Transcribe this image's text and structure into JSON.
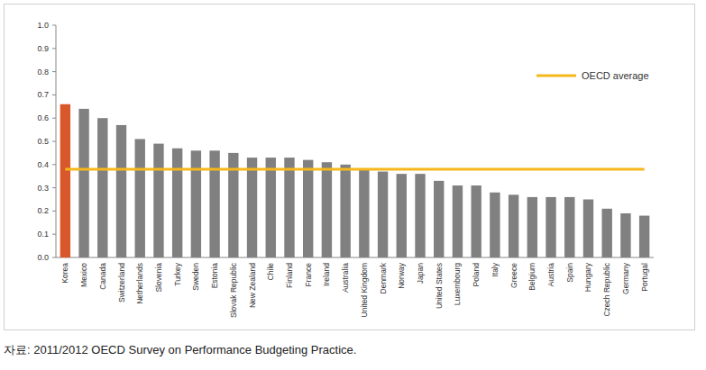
{
  "chart_data": {
    "type": "bar",
    "source": "자료: 2011/2012 OECD Survey on Performance Budgeting Practice.",
    "categories": [
      "Korea",
      "Mexico",
      "Canada",
      "Switzerland",
      "Netherlands",
      "Slovenia",
      "Turkey",
      "Sweden",
      "Estonia",
      "Slovak Republic",
      "New Zealand",
      "Chile",
      "Finland",
      "France",
      "Ireland",
      "Australia",
      "United Kingdom",
      "Denmark",
      "Norway",
      "Japan",
      "United States",
      "Luxembourg",
      "Poland",
      "Italy",
      "Greece",
      "Belgium",
      "Austria",
      "Spain",
      "Hungary",
      "Czech Republic",
      "Germany",
      "Portugal"
    ],
    "series": [
      {
        "type": "bar",
        "colors": [
          "#d9582b",
          "#808080",
          "#808080",
          "#808080",
          "#808080",
          "#808080",
          "#808080",
          "#808080",
          "#808080",
          "#808080",
          "#808080",
          "#808080",
          "#808080",
          "#808080",
          "#808080",
          "#808080",
          "#808080",
          "#808080",
          "#808080",
          "#808080",
          "#808080",
          "#808080",
          "#808080",
          "#808080",
          "#808080",
          "#808080",
          "#808080",
          "#808080",
          "#808080",
          "#808080",
          "#808080",
          "#808080"
        ],
        "values": [
          0.66,
          0.64,
          0.6,
          0.57,
          0.51,
          0.49,
          0.47,
          0.46,
          0.46,
          0.45,
          0.43,
          0.43,
          0.43,
          0.42,
          0.41,
          0.4,
          0.38,
          0.37,
          0.36,
          0.36,
          0.33,
          0.31,
          0.31,
          0.28,
          0.27,
          0.26,
          0.26,
          0.26,
          0.25,
          0.21,
          0.19,
          0.18
        ]
      },
      {
        "name": "OECD average",
        "type": "line",
        "color": "#f5b71c",
        "values": [
          0.38,
          0.38,
          0.38,
          0.38,
          0.38,
          0.38,
          0.38,
          0.38,
          0.38,
          0.38,
          0.38,
          0.38,
          0.38,
          0.38,
          0.38,
          0.38,
          0.38,
          0.38,
          0.38,
          0.38,
          0.38,
          0.38,
          0.38,
          0.38,
          0.38,
          0.38,
          0.38,
          0.38,
          0.38,
          0.38,
          0.38,
          0.38
        ]
      }
    ],
    "ylim": [
      0,
      1
    ],
    "yticks": [
      {
        "value": 0,
        "label": "0.0"
      },
      0.1,
      0.2,
      0.3,
      0.4,
      0.5,
      0.6,
      0.7,
      0.8,
      0.9,
      {
        "value": 1,
        "label": "1.0"
      }
    ],
    "grid": false,
    "legend": "upper right"
  }
}
